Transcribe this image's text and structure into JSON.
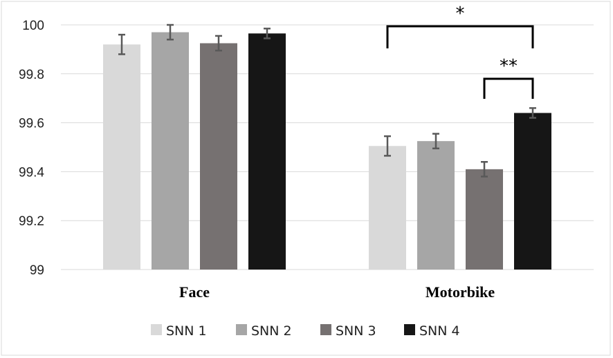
{
  "chart_data": {
    "type": "bar",
    "title": "",
    "xlabel": "",
    "ylabel": "",
    "ylim": [
      99,
      100
    ],
    "yticks": [
      99,
      99.2,
      99.4,
      99.6,
      99.8,
      100
    ],
    "ytick_labels": [
      "99",
      "99.2",
      "99.4",
      "99.6",
      "99.8",
      "100"
    ],
    "categories": [
      "Face",
      "Motorbike"
    ],
    "series": [
      {
        "name": "SNN 1",
        "color": "#d9d9d9",
        "values": [
          99.92,
          99.505
        ],
        "errors": [
          0.04,
          0.04
        ]
      },
      {
        "name": "SNN 2",
        "color": "#a6a6a6",
        "values": [
          99.97,
          99.525
        ],
        "errors": [
          0.03,
          0.03
        ]
      },
      {
        "name": "SNN 3",
        "color": "#767171",
        "values": [
          99.925,
          99.41
        ],
        "errors": [
          0.03,
          0.03
        ]
      },
      {
        "name": "SNN 4",
        "color": "#161616",
        "values": [
          99.965,
          99.64
        ],
        "errors": [
          0.02,
          0.02
        ]
      }
    ],
    "grid": true,
    "legend_position": "bottom",
    "annotations": [
      {
        "label": "*",
        "category": "Motorbike",
        "from_series": "SNN 1",
        "to_series": "SNN 4"
      },
      {
        "label": "**",
        "category": "Motorbike",
        "from_series": "SNN 3",
        "to_series": "SNN 4"
      }
    ]
  }
}
